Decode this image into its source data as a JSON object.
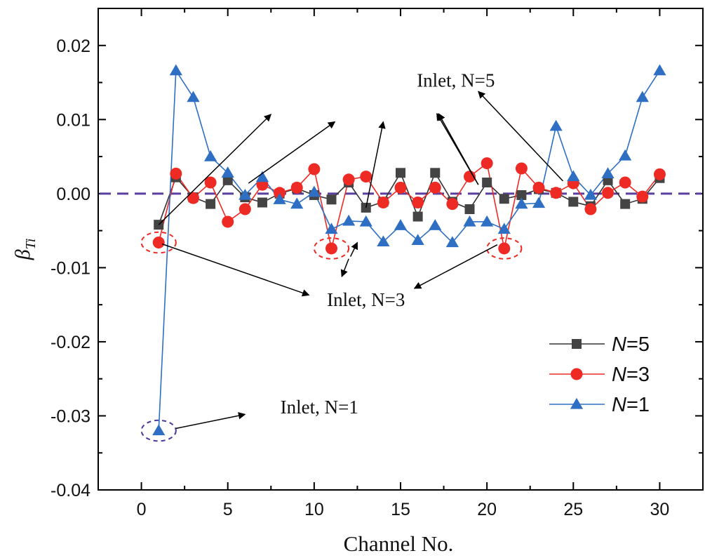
{
  "chart_data": {
    "type": "line",
    "xlabel": "Channel No.",
    "ylabel": {
      "symbol": "β",
      "subscript": "Ti"
    },
    "xlim": [
      -2.5,
      32.5
    ],
    "ylim": [
      -0.04,
      0.025
    ],
    "x_ticks": [
      0,
      5,
      10,
      15,
      20,
      25,
      30
    ],
    "x_tick_labels": [
      "0",
      "5",
      "10",
      "15",
      "20",
      "25",
      "30"
    ],
    "y_ticks": [
      -0.04,
      -0.03,
      -0.02,
      -0.01,
      0.0,
      0.01,
      0.02
    ],
    "y_tick_labels": [
      "-0.04",
      "-0.03",
      "-0.02",
      "-0.01",
      "0.00",
      "0.01",
      "0.02"
    ],
    "reference_line": {
      "y": 0.0,
      "color": "#5b3fa0",
      "style": "dashed"
    },
    "x": [
      1,
      2,
      3,
      4,
      5,
      6,
      7,
      8,
      9,
      10,
      11,
      12,
      13,
      14,
      15,
      16,
      17,
      18,
      19,
      20,
      21,
      22,
      23,
      24,
      25,
      26,
      27,
      28,
      29,
      30
    ],
    "series": [
      {
        "name_italic": "N",
        "name_rest": "=5",
        "key": "n5",
        "color": "#333333",
        "marker_color": "#444444",
        "marker": "square",
        "values": [
          -0.0042,
          0.0022,
          -0.0005,
          -0.0014,
          0.0018,
          -0.0005,
          -0.0012,
          0.0,
          0.0007,
          -0.0002,
          -0.0008,
          0.0015,
          -0.0019,
          -0.0011,
          0.0028,
          -0.0031,
          0.0028,
          -0.0011,
          -0.0021,
          0.0015,
          -0.0007,
          -0.0002,
          0.0006,
          0.0001,
          -0.0011,
          -0.0017,
          0.0018,
          -0.0014,
          -0.0007,
          0.0021
        ]
      },
      {
        "name_italic": "N",
        "name_rest": "=3",
        "key": "n3",
        "color": "#ee2a24",
        "marker_color": "#ee2a24",
        "marker": "circle",
        "values": [
          -0.0066,
          0.0027,
          -0.0006,
          0.0015,
          -0.0038,
          -0.0021,
          0.0012,
          0.0001,
          0.0008,
          0.0033,
          -0.0074,
          0.0019,
          0.0023,
          -0.0012,
          0.0008,
          -0.0012,
          0.0008,
          -0.0014,
          0.0023,
          0.0041,
          -0.0074,
          0.0034,
          0.0008,
          0.0001,
          0.0014,
          -0.0021,
          0.0001,
          0.0015,
          -0.0004,
          0.0026
        ]
      },
      {
        "name_italic": "N",
        "name_rest": "=1",
        "key": "n1",
        "color": "#2e6fc4",
        "marker_color": "#2e6fc4",
        "marker": "triangle",
        "values": [
          -0.032,
          0.0166,
          0.013,
          0.005,
          0.0028,
          -0.0002,
          0.0022,
          -0.0008,
          -0.0014,
          0.0002,
          -0.0048,
          -0.0037,
          -0.0038,
          -0.0065,
          -0.0043,
          -0.0063,
          -0.0043,
          -0.0066,
          -0.0038,
          -0.0038,
          -0.0048,
          -0.0014,
          -0.0013,
          0.0091,
          0.0023,
          -0.0002,
          0.0027,
          0.0051,
          0.013,
          0.0166
        ]
      }
    ],
    "legend_position": "bottom-right",
    "annotations": [
      {
        "text": "Inlet, N=5",
        "x": 18.2,
        "y": 0.0153,
        "arrows": [
          {
            "from": [
              1,
              -0.0042
            ],
            "to": [
              7.5,
              0.0107
            ]
          },
          {
            "from": [
              6.2,
              0.0014
            ],
            "to": [
              11.2,
              0.0097
            ]
          },
          {
            "from": [
              13,
              -0.0019
            ],
            "to": [
              14.0,
              0.0097
            ]
          },
          {
            "from": [
              19.5,
              0.0012
            ],
            "to": [
              17.2,
              0.0108
            ]
          },
          {
            "from": [
              19.5,
              0.0012
            ],
            "to": [
              17.1,
              0.0108
            ]
          },
          {
            "from": [
              24.4,
              0.0017
            ],
            "to": [
              19.5,
              0.0138
            ]
          }
        ]
      },
      {
        "text": "Inlet, N=3",
        "x": 13.0,
        "y": -0.0143,
        "arrows": [
          {
            "from": [
              1.2,
              -0.0068
            ],
            "to": [
              9.7,
              -0.0137
            ]
          },
          {
            "from": [
              12.0,
              -0.0088
            ],
            "to": [
              11.6,
              -0.0112
            ]
          },
          {
            "from": [
              12.1,
              -0.0085
            ],
            "to": [
              12.5,
              -0.0066
            ]
          },
          {
            "from": [
              20.6,
              -0.0069
            ],
            "to": [
              15.8,
              -0.0128
            ]
          }
        ]
      },
      {
        "text": "Inlet, N=1",
        "x": 10.3,
        "y": -0.0288,
        "arrows": [
          {
            "from": [
              2.0,
              -0.0317
            ],
            "to": [
              6.0,
              -0.0298
            ]
          }
        ]
      }
    ],
    "highlights": [
      {
        "x": 1,
        "y": -0.0066,
        "rx": 1.0,
        "ry": 0.0014,
        "color": "#ee2a24"
      },
      {
        "x": 11,
        "y": -0.0074,
        "rx": 1.0,
        "ry": 0.0014,
        "color": "#ee2a24"
      },
      {
        "x": 21,
        "y": -0.0074,
        "rx": 1.0,
        "ry": 0.0014,
        "color": "#ee2a24"
      },
      {
        "x": 1,
        "y": -0.032,
        "rx": 1.0,
        "ry": 0.0014,
        "color": "#4b3a9c"
      }
    ]
  }
}
